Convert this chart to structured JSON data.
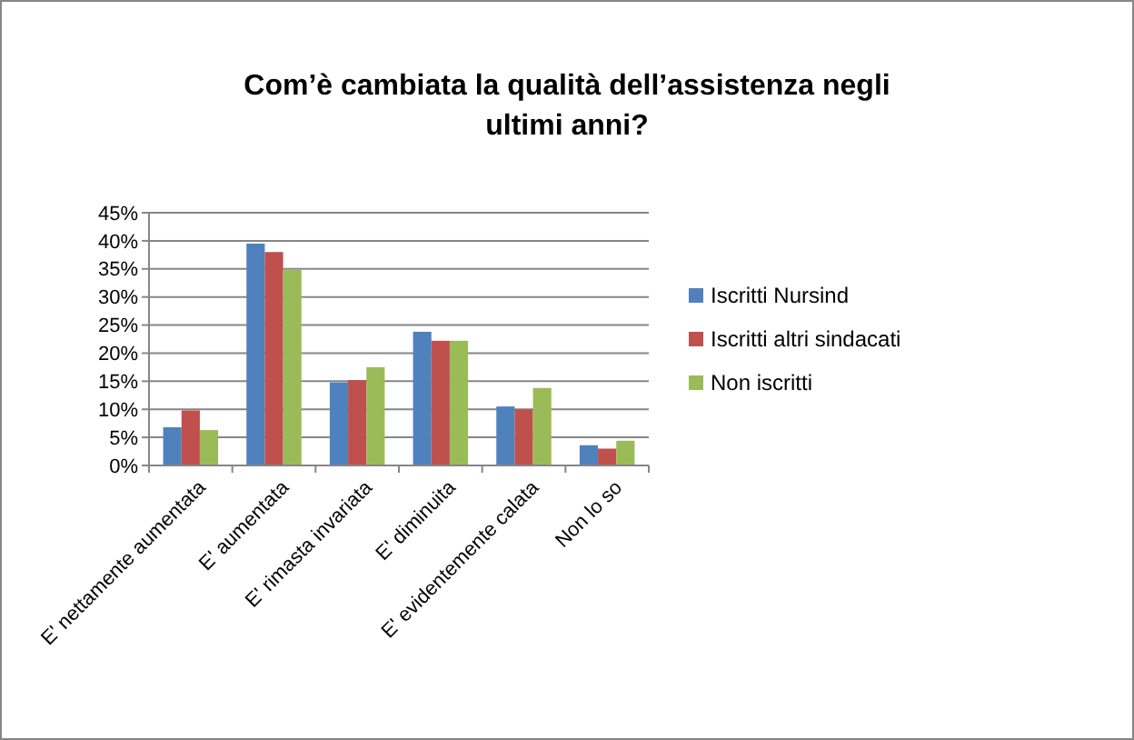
{
  "chart_data": {
    "type": "bar",
    "title": "Com’è cambiata la qualità dell’assistenza negli ultimi anni?",
    "categories": [
      "E' nettamente aumentata",
      "E' aumentata",
      "E' rimasta invariata",
      "E' diminuita",
      "E' evidentemente calata",
      "Non lo so"
    ],
    "series": [
      {
        "name": "Iscritti Nursind",
        "color": "#4f81bd",
        "values": [
          6.8,
          39.5,
          14.8,
          23.8,
          10.5,
          3.6
        ]
      },
      {
        "name": "Iscritti altri sindacati",
        "color": "#c0504d",
        "values": [
          9.8,
          38,
          15.2,
          22.2,
          10,
          3
        ]
      },
      {
        "name": "Non iscritti",
        "color": "#9bbb59",
        "values": [
          6.3,
          34.8,
          17.5,
          22.2,
          13.8,
          4.4
        ]
      }
    ],
    "ylim": [
      0,
      45
    ],
    "yticks": [
      {
        "value": 0,
        "label": "0%"
      },
      {
        "value": 5,
        "label": "5%"
      },
      {
        "value": 10,
        "label": "10%"
      },
      {
        "value": 15,
        "label": "15%"
      },
      {
        "value": 20,
        "label": "20%"
      },
      {
        "value": 25,
        "label": "25%"
      },
      {
        "value": 30,
        "label": "30%"
      },
      {
        "value": 35,
        "label": "35%"
      },
      {
        "value": 40,
        "label": "40%"
      },
      {
        "value": 45,
        "label": "45%"
      }
    ],
    "grid": "y",
    "legend": "right"
  }
}
